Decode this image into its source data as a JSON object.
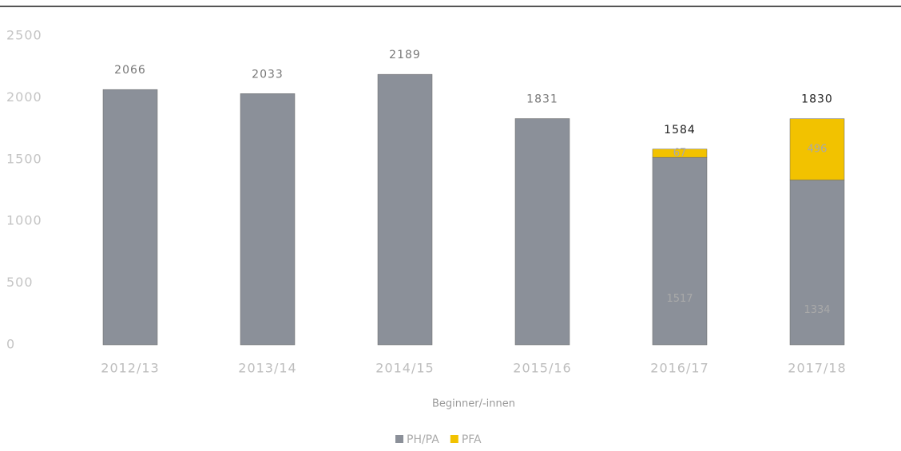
{
  "chart_data": {
    "type": "stacked_bar",
    "categories": [
      "2012/13",
      "2013/14",
      "2014/15",
      "2015/16",
      "2016/17",
      "2017/18"
    ],
    "series": [
      {
        "name": "PH/PA",
        "color": "#8b9099",
        "values": [
          2066,
          2033,
          2189,
          1831,
          1517,
          1334
        ]
      },
      {
        "name": "PFA",
        "color": "#f2c200",
        "values": [
          null,
          null,
          null,
          null,
          67,
          496
        ]
      }
    ],
    "totals": [
      2066,
      2033,
      2189,
      1831,
      1584,
      1830
    ],
    "x_label": "Beginner/-innen",
    "ylim": [
      0,
      2500
    ],
    "yticks": [
      0,
      500,
      1000,
      1500,
      2000,
      2500
    ],
    "grid": false,
    "legend": "bottom"
  }
}
